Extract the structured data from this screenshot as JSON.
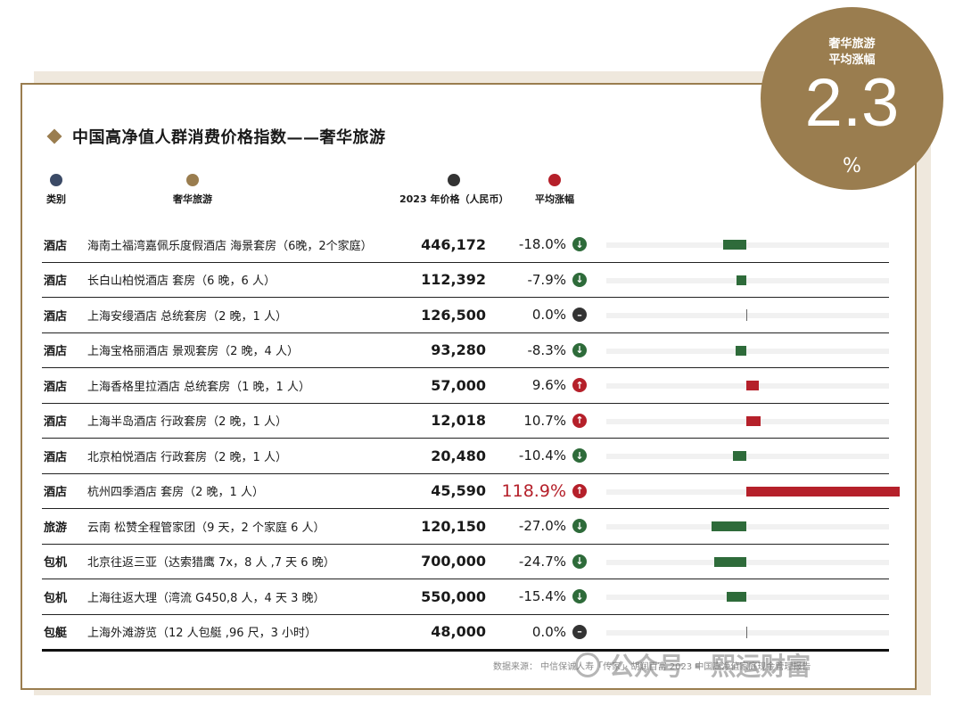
{
  "title": "中国高净值人群消费价格指数——奢华旅游",
  "legend": {
    "category": "类别",
    "item": "奢华旅游",
    "price": "2023 年价格（人民币）",
    "change": "平均涨幅"
  },
  "colors": {
    "gold": "#9a7d4f",
    "navy": "#3b4a66",
    "dark": "#333333",
    "red": "#b5202a",
    "green": "#2e6b3a"
  },
  "badge": {
    "line1": "奢华旅游",
    "line2": "平均涨幅",
    "value": "2.3",
    "unit": "%"
  },
  "chart_data": {
    "type": "bar",
    "title": "中国高净值人群消费价格指数——奢华旅游",
    "categories": [
      "海南土福湾嘉佩乐度假酒店 海景套房（6晚，2个家庭）",
      "长白山柏悦酒店 套房（6 晚，6 人）",
      "上海安缦酒店 总统套房（2 晚，1 人）",
      "上海宝格丽酒店 景观套房（2 晚，4 人）",
      "上海香格里拉酒店 总统套房（1 晚，1 人）",
      "上海半岛酒店 行政套房（2 晚，1 人）",
      "北京柏悦酒店 行政套房（2 晚，1 人）",
      "杭州四季酒店 套房（2 晚，1 人）",
      "云南 松赞全程管家团（9 天，2 个家庭 6 人）",
      "北京往返三亚（达索猎鹰 7x，8 人 ,7 天 6 晚）",
      "上海往返大理（湾流 G450,8 人，4 天 3 晚）",
      "上海外滩游览（12 人包艇 ,96 尺，3 小时）"
    ],
    "values": [
      -18.0,
      -7.9,
      0.0,
      -8.3,
      9.6,
      10.7,
      -10.4,
      118.9,
      -27.0,
      -24.7,
      -15.4,
      0.0
    ]
  },
  "rows": [
    {
      "category": "酒店",
      "item": "海南土福湾嘉佩乐度假酒店 海景套房（6晚，2个家庭）",
      "price": "446,172",
      "change": "-18.0%",
      "direction": "down",
      "value": -18.0
    },
    {
      "category": "酒店",
      "item": "长白山柏悦酒店 套房（6 晚，6 人）",
      "price": "112,392",
      "change": "-7.9%",
      "direction": "down",
      "value": -7.9
    },
    {
      "category": "酒店",
      "item": "上海安缦酒店 总统套房（2 晚，1 人）",
      "price": "126,500",
      "change": "0.0%",
      "direction": "flat",
      "value": 0.0
    },
    {
      "category": "酒店",
      "item": "上海宝格丽酒店 景观套房（2 晚，4 人）",
      "price": "93,280",
      "change": "-8.3%",
      "direction": "down",
      "value": -8.3
    },
    {
      "category": "酒店",
      "item": "上海香格里拉酒店 总统套房（1 晚，1 人）",
      "price": "57,000",
      "change": "9.6%",
      "direction": "up",
      "value": 9.6
    },
    {
      "category": "酒店",
      "item": "上海半岛酒店 行政套房（2 晚，1 人）",
      "price": "12,018",
      "change": "10.7%",
      "direction": "up",
      "value": 10.7
    },
    {
      "category": "酒店",
      "item": "北京柏悦酒店 行政套房（2 晚，1 人）",
      "price": "20,480",
      "change": "-10.4%",
      "direction": "down",
      "value": -10.4
    },
    {
      "category": "酒店",
      "item": "杭州四季酒店 套房（2 晚，1 人）",
      "price": "45,590",
      "change": "118.9%",
      "direction": "up",
      "value": 118.9,
      "highlight": true
    },
    {
      "category": "旅游",
      "item": "云南 松赞全程管家团（9 天，2 个家庭 6 人）",
      "price": "120,150",
      "change": "-27.0%",
      "direction": "down",
      "value": -27.0
    },
    {
      "category": "包机",
      "item": "北京往返三亚（达索猎鹰 7x，8 人 ,7 天 6 晚）",
      "price": "700,000",
      "change": "-24.7%",
      "direction": "down",
      "value": -24.7
    },
    {
      "category": "包机",
      "item": "上海往返大理（湾流 G450,8 人，4 天 3 晚）",
      "price": "550,000",
      "change": "-15.4%",
      "direction": "down",
      "value": -15.4
    },
    {
      "category": "包艇",
      "item": "上海外滩游览（12 人包艇 ,96 尺，3 小时）",
      "price": "48,000",
      "change": "0.0%",
      "direction": "flat",
      "value": 0.0
    }
  ],
  "source": "数据来源： 中信保诚人寿「传家」· 胡润百富 2023 中国高净值家庭现金管理报告",
  "watermark": "公众号 · 熙运财富"
}
